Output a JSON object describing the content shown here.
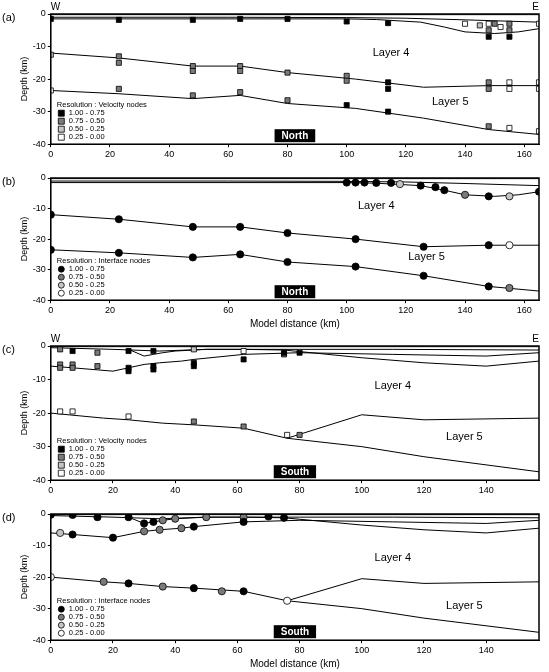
{
  "chart_data": [
    {
      "type": "scatter",
      "panel": "(a)",
      "title": "North",
      "left_label": "W",
      "right_label": "E",
      "y_label": "Depth (km)",
      "xlim": [
        0,
        165
      ],
      "ylim": [
        -40,
        0
      ],
      "xticks": [
        0,
        20,
        40,
        60,
        80,
        100,
        120,
        140,
        160
      ],
      "yticks": [
        -40,
        -30,
        -20,
        -10,
        0
      ],
      "grid": false,
      "legend": "lower left",
      "legend_title": "Resolution : Velocity nodes",
      "marker": "square",
      "interfaces": [
        {
          "x": [
            0,
            165
          ],
          "y": [
            -0.2,
            -0.2
          ]
        },
        {
          "x": [
            0,
            60,
            100,
            120,
            140,
            165
          ],
          "y": [
            -1,
            -1,
            -1.1,
            -1.3,
            -1.8,
            -2.5
          ]
        },
        {
          "x": [
            0,
            100,
            110,
            125,
            133,
            140,
            150,
            158,
            165
          ],
          "y": [
            -1.5,
            -1.5,
            -1.7,
            -2.5,
            -4,
            -5.5,
            -6,
            -5.5,
            -4.5
          ]
        },
        {
          "x": [
            0,
            23,
            48,
            64,
            80,
            103,
            126,
            148,
            165
          ],
          "y": [
            -12,
            -13.5,
            -16,
            -16,
            -18,
            -20,
            -22.5,
            -22,
            -22
          ]
        },
        {
          "x": [
            0,
            23,
            48,
            64,
            80,
            103,
            126,
            148,
            165
          ],
          "y": [
            -23.5,
            -24.5,
            -26,
            -25,
            -27.5,
            -29,
            -32,
            -35.5,
            -37
          ]
        }
      ],
      "series": [
        {
          "name": "1.00 - 0.75",
          "color": "#000000",
          "x": [
            0,
            23,
            48,
            64,
            80,
            100,
            114,
            148,
            155,
            114,
            114,
            100,
            114
          ],
          "y": [
            -1.5,
            -1.8,
            -1.8,
            -1.5,
            -1.5,
            -2.3,
            -2.8,
            -7,
            -7,
            -21,
            -23,
            -28,
            -30
          ]
        },
        {
          "name": "0.75 - 0.50",
          "color": "#7a7a7a",
          "x": [
            150,
            155,
            148,
            155,
            23,
            23,
            48,
            48,
            64,
            64,
            80,
            100,
            100,
            148,
            148,
            23,
            48,
            64,
            80,
            148
          ],
          "y": [
            -3,
            -3,
            -5,
            -5,
            -13,
            -15,
            -16,
            -17.5,
            -16,
            -17.5,
            -18,
            -19,
            -20.5,
            -21,
            -23,
            -23,
            -25,
            -24,
            -26.5,
            -34.5
          ]
        },
        {
          "name": "0.50 - 0.25",
          "color": "#c4c4c4",
          "x": [
            0,
            145
          ],
          "y": [
            -12.5,
            -3.5
          ]
        },
        {
          "name": "0.25 - 0.00",
          "color": "#ffffff",
          "x": [
            140,
            148,
            152,
            165,
            155,
            155,
            165,
            165,
            155,
            165,
            0
          ],
          "y": [
            -3,
            -3,
            -4,
            -3,
            -21,
            -23,
            -21,
            -23,
            -35,
            -36,
            -23.5
          ]
        }
      ],
      "annotations": [
        {
          "text": "Layer 4",
          "x": 115,
          "y": -12
        },
        {
          "text": "Layer 5",
          "x": 135,
          "y": -27
        }
      ]
    },
    {
      "type": "scatter",
      "panel": "(b)",
      "title": "North",
      "y_label": "Depth (km)",
      "x_label": "Model distance (km)",
      "xlim": [
        0,
        165
      ],
      "ylim": [
        -40,
        0
      ],
      "xticks": [
        0,
        20,
        40,
        60,
        80,
        100,
        120,
        140,
        160
      ],
      "yticks": [
        -40,
        -30,
        -20,
        -10,
        0
      ],
      "grid": false,
      "legend": "lower left",
      "legend_title": "Resolution : Interface nodes",
      "marker": "circle",
      "interfaces": [
        {
          "x": [
            0,
            165
          ],
          "y": [
            -0.2,
            -0.2
          ]
        },
        {
          "x": [
            0,
            60,
            100,
            120,
            140,
            165
          ],
          "y": [
            -1,
            -1,
            -1.1,
            -1.3,
            -1.8,
            -2.5
          ]
        },
        {
          "x": [
            0,
            100,
            110,
            125,
            133,
            140,
            150,
            158,
            165
          ],
          "y": [
            -1.5,
            -1.5,
            -1.7,
            -2.5,
            -4,
            -5.5,
            -6,
            -5.5,
            -4.5
          ]
        },
        {
          "x": [
            0,
            23,
            48,
            64,
            80,
            103,
            126,
            148,
            165
          ],
          "y": [
            -12,
            -13.5,
            -16,
            -16,
            -18,
            -20,
            -22.5,
            -22,
            -22
          ]
        },
        {
          "x": [
            0,
            23,
            48,
            64,
            80,
            103,
            126,
            148,
            165
          ],
          "y": [
            -23.5,
            -24.5,
            -26,
            -25,
            -27.5,
            -29,
            -32,
            -35.5,
            -37
          ]
        }
      ],
      "series": [
        {
          "name": "1.00 - 0.75",
          "color": "#000000",
          "x": [
            100,
            103,
            106,
            110,
            115,
            125,
            130,
            133,
            148,
            165,
            0,
            23,
            48,
            64,
            80,
            103,
            126,
            148,
            0,
            23,
            48,
            64,
            80,
            103,
            126,
            148
          ],
          "y": [
            -1.5,
            -1.5,
            -1.5,
            -1.6,
            -1.6,
            -2.5,
            -3,
            -4,
            -6,
            -4.5,
            -12,
            -13.5,
            -16,
            -16,
            -18,
            -20,
            -22.5,
            -22,
            -23.5,
            -24.5,
            -26,
            -25,
            -27.5,
            -29,
            -32,
            -35.5
          ]
        },
        {
          "name": "0.75 - 0.50",
          "color": "#7a7a7a",
          "x": [
            140,
            155
          ],
          "y": [
            -5.5,
            -36
          ]
        },
        {
          "name": "0.50 - 0.25",
          "color": "#c4c4c4",
          "x": [
            118,
            155
          ],
          "y": [
            -2,
            -6
          ]
        },
        {
          "name": "0.25 - 0.00",
          "color": "#ffffff",
          "x": [
            155
          ],
          "y": [
            -22
          ]
        }
      ],
      "annotations": [
        {
          "text": "Layer 4",
          "x": 110,
          "y": -9
        },
        {
          "text": "Layer 5",
          "x": 127,
          "y": -26
        }
      ]
    },
    {
      "type": "scatter",
      "panel": "(c)",
      "title": "South",
      "left_label": "W",
      "right_label": "E",
      "y_label": "Depth (km)",
      "xlim": [
        0,
        157
      ],
      "ylim": [
        -40,
        0
      ],
      "xticks": [
        0,
        20,
        40,
        60,
        80,
        100,
        120,
        140
      ],
      "yticks": [
        -40,
        -30,
        -20,
        -10,
        0
      ],
      "grid": false,
      "legend": "lower left",
      "legend_title": "Resolution : Velocity nodes",
      "marker": "square",
      "interfaces": [
        {
          "x": [
            0,
            157
          ],
          "y": [
            -0.2,
            -0.2
          ]
        },
        {
          "x": [
            0,
            20,
            35,
            50,
            80,
            110,
            157
          ],
          "y": [
            -0.5,
            -1,
            -1.5,
            -1,
            -1,
            -1,
            -1.2
          ]
        },
        {
          "x": [
            0,
            7,
            20,
            30,
            35,
            42,
            46,
            62,
            80,
            110,
            140,
            157
          ],
          "y": [
            -6,
            -6.5,
            -7.5,
            -5.5,
            -5,
            -4.5,
            -4,
            -2.5,
            -2,
            -2.5,
            -3,
            -2
          ]
        },
        {
          "x": [
            25,
            30,
            33,
            36,
            40,
            50,
            62,
            75,
            100,
            120,
            140,
            157
          ],
          "y": [
            -1,
            -3,
            -2.5,
            -2,
            -1.5,
            -1,
            -1,
            -1.2,
            -3.5,
            -5,
            -6,
            -4.5
          ]
        },
        {
          "x": [
            0,
            17,
            25,
            36,
            46,
            62,
            76,
            100,
            120,
            157
          ],
          "y": [
            -20,
            -21.5,
            -22,
            -23,
            -23.5,
            -24.5,
            -27.5,
            -30,
            -33,
            -37.5
          ]
        },
        {
          "x": [
            76,
            100,
            120,
            157
          ],
          "y": [
            -27.5,
            -20.5,
            -22,
            -21.5
          ]
        }
      ],
      "series": [
        {
          "name": "1.00 - 0.75",
          "color": "#000000",
          "x": [
            7,
            25,
            33,
            75,
            80,
            25,
            25,
            33,
            33,
            46,
            46,
            62
          ],
          "y": [
            -1.5,
            -1.5,
            -1.5,
            -2,
            -2,
            -6.5,
            -7.5,
            -6,
            -7,
            -5,
            -6,
            -4
          ]
        },
        {
          "name": "0.75 - 0.50",
          "color": "#7a7a7a",
          "x": [
            3,
            15,
            3,
            7,
            15,
            3,
            7,
            75,
            46,
            62,
            80
          ],
          "y": [
            -1,
            -2,
            -5.5,
            -5.5,
            -6,
            -6.5,
            -6.5,
            -2.5,
            -22.5,
            -24,
            -26.5
          ]
        },
        {
          "name": "0.50 - 0.25",
          "color": "#c4c4c4",
          "x": [
            46
          ],
          "y": [
            -1
          ]
        },
        {
          "name": "0.25 - 0.00",
          "color": "#ffffff",
          "x": [
            62,
            3,
            7,
            25,
            76
          ],
          "y": [
            -1.5,
            -19.5,
            -19.5,
            -21,
            -26.5
          ]
        }
      ],
      "annotations": [
        {
          "text": "Layer 4",
          "x": 110,
          "y": -12
        },
        {
          "text": "Layer 5",
          "x": 133,
          "y": -27
        }
      ]
    },
    {
      "type": "scatter",
      "panel": "(d)",
      "title": "South",
      "y_label": "Depth (km)",
      "x_label": "Model distance (km)",
      "xlim": [
        0,
        157
      ],
      "ylim": [
        -40,
        0
      ],
      "xticks": [
        0,
        20,
        40,
        60,
        80,
        100,
        120,
        140
      ],
      "yticks": [
        -40,
        -30,
        -20,
        -10,
        0
      ],
      "grid": false,
      "legend": "lower left",
      "legend_title": "Resolution : Interface nodes",
      "marker": "circle",
      "interfaces": [
        {
          "x": [
            0,
            157
          ],
          "y": [
            -0.2,
            -0.2
          ]
        },
        {
          "x": [
            0,
            20,
            35,
            50,
            80,
            110,
            157
          ],
          "y": [
            -0.5,
            -1,
            -1.5,
            -1,
            -1,
            -1,
            -1.2
          ]
        },
        {
          "x": [
            0,
            7,
            20,
            30,
            35,
            42,
            46,
            62,
            80,
            110,
            140,
            157
          ],
          "y": [
            -6,
            -6.5,
            -7.5,
            -5.5,
            -5,
            -4.5,
            -4,
            -2.5,
            -2,
            -2.5,
            -3,
            -2
          ]
        },
        {
          "x": [
            25,
            30,
            33,
            36,
            40,
            50,
            62,
            75,
            100,
            120,
            140,
            157
          ],
          "y": [
            -1,
            -3,
            -2.5,
            -2,
            -1.5,
            -1,
            -1,
            -1.2,
            -3.5,
            -5,
            -6,
            -4.5
          ]
        },
        {
          "x": [
            0,
            17,
            25,
            36,
            46,
            62,
            76,
            100,
            120,
            157
          ],
          "y": [
            -20,
            -21.5,
            -22,
            -23,
            -23.5,
            -24.5,
            -27.5,
            -30,
            -33,
            -37.5
          ]
        },
        {
          "x": [
            76,
            100,
            120,
            157
          ],
          "y": [
            -27.5,
            -20.5,
            -22,
            -21.5
          ]
        }
      ],
      "series": [
        {
          "name": "1.00 - 0.75",
          "color": "#000000",
          "x": [
            0,
            7,
            15,
            25,
            30,
            33,
            70,
            75,
            7,
            20,
            46,
            62,
            25,
            46,
            62
          ],
          "y": [
            -0.2,
            -0.3,
            -1,
            -1,
            -3,
            -2.5,
            -0.8,
            -1.2,
            -6.5,
            -7.5,
            -4,
            -2.5,
            -22,
            -23.5,
            -24.5
          ]
        },
        {
          "name": "0.75 - 0.50",
          "color": "#7a7a7a",
          "x": [
            36,
            40,
            50,
            62,
            30,
            35,
            42,
            17,
            36,
            55
          ],
          "y": [
            -2,
            -1.5,
            -1,
            -1,
            -5.5,
            -5,
            -4.5,
            -21.5,
            -23,
            -24.5
          ]
        },
        {
          "name": "0.50 - 0.25",
          "color": "#c4c4c4",
          "x": [
            3
          ],
          "y": [
            -6
          ]
        },
        {
          "name": "0.25 - 0.00",
          "color": "#ffffff",
          "x": [
            0,
            76
          ],
          "y": [
            -20,
            -27.5
          ]
        }
      ],
      "annotations": [
        {
          "text": "Layer 4",
          "x": 110,
          "y": -14
        },
        {
          "text": "Layer 5",
          "x": 133,
          "y": -29
        }
      ]
    }
  ]
}
